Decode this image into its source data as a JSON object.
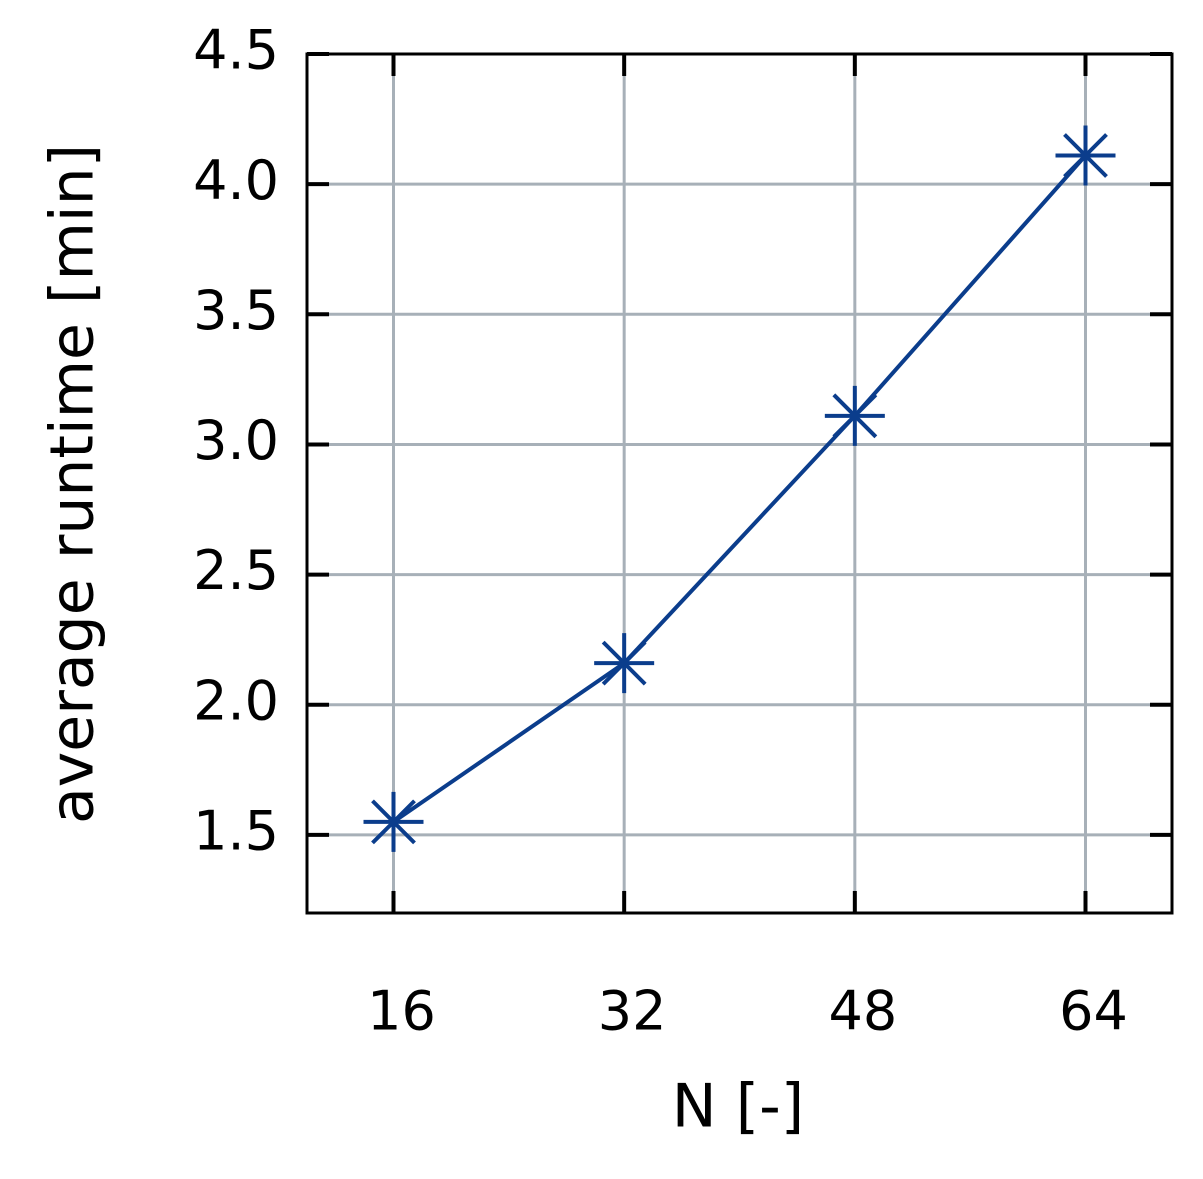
{
  "chart_data": {
    "type": "line",
    "xlabel": "N [-]",
    "ylabel": "average runtime [min]",
    "x": [
      16,
      32,
      48,
      64
    ],
    "series": [
      {
        "name": "average runtime",
        "color": "#0b3d8c",
        "values": [
          1.55,
          2.16,
          3.11,
          4.11
        ]
      }
    ],
    "xlim": [
      10,
      70
    ],
    "xticks": [
      16,
      32,
      48,
      64
    ],
    "ylim": [
      1.2,
      4.5
    ],
    "yticks": [
      1.5,
      {
        "value": 2,
        "label": "2.0"
      },
      2.5,
      {
        "value": 3,
        "label": "3.0"
      },
      3.5,
      {
        "value": 4,
        "label": "4.0"
      },
      4.5
    ],
    "grid": true
  }
}
